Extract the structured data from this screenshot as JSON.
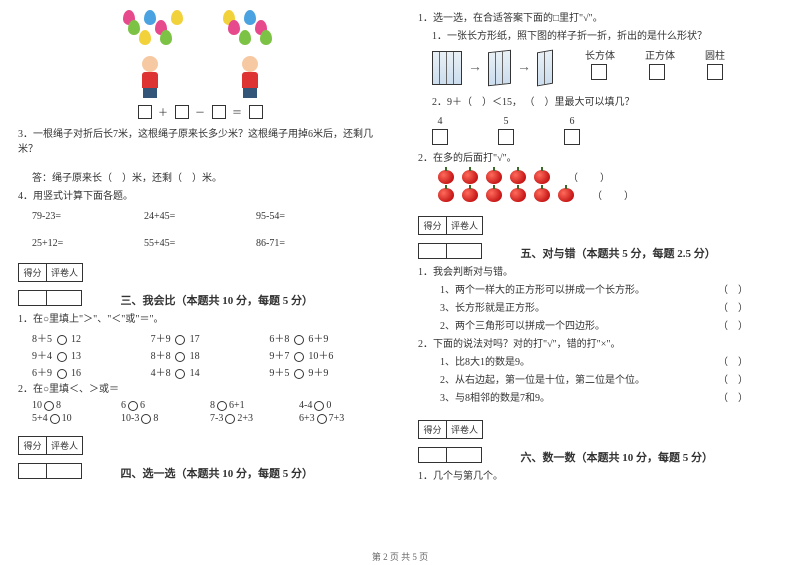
{
  "footer": "第 2 页 共 5 页",
  "left": {
    "balloon_colors_a": [
      "#e64a8c",
      "#7cc244",
      "#f2d23b",
      "#4aa3e0",
      "#e64a8c",
      "#7cc244",
      "#f2d23b"
    ],
    "balloon_colors_b": [
      "#f2d23b",
      "#e64a8c",
      "#7cc244",
      "#4aa3e0",
      "#e64a8c",
      "#7cc244"
    ],
    "eq_ops": [
      "＋",
      "－",
      "＝"
    ],
    "q3": "3．一根绳子对折后长7米，这根绳子原来长多少米？这根绳子用掉6米后，还剩几米？",
    "q3_ans": "答：绳子原来长（　）米，还剩（　）米。",
    "q4": "4．用竖式计算下面各题。",
    "calc": [
      "79-23=",
      "24+45=",
      "95-54=",
      "25+12=",
      "55+45=",
      "86-71="
    ],
    "sec3_title": "三、我会比（本题共 10 分，每题 5 分）",
    "comp1_label": "1．在○里填上\"＞\"、\"＜\"或\"＝\"。",
    "comp1": [
      "8＋5 ○ 12",
      "7＋9 ○ 17",
      "6＋8 ○ 6＋9",
      "9＋4 ○ 13",
      "8＋8 ○ 18",
      "9＋7 ○ 10＋6",
      "6＋9 ○ 16",
      "4＋8 ○ 14",
      "9＋5 ○ 9＋9"
    ],
    "comp2_label": "2．在○里填＜、＞或＝",
    "comp2": [
      "10○8",
      "6○6",
      "8○6+1",
      "4-4○0",
      "5+4○10",
      "10-3○8",
      "7-3○2+3",
      "6+3○7+3"
    ],
    "sec4_title": "四、选一选（本题共 10 分，每题 5 分）",
    "score_labels": [
      "得分",
      "评卷人"
    ]
  },
  "right": {
    "q1": "1．选一选，在合适答案下面的□里打\"√\"。",
    "q1_sub": "1．一张长方形纸，照下图的样子折一折，折出的是什么形状？",
    "shape_labels": [
      "长方体",
      "正方体",
      "圆柱"
    ],
    "fillmax_label_a": "2．9＋（　）＜15，",
    "fillmax_label_b": "（　）里最大可以填几？",
    "fillmax_nums": [
      "4",
      "5",
      "6"
    ],
    "q2": "2．在多的后面打\"√\"。",
    "apple_rows": [
      5,
      6
    ],
    "paren": "（　）",
    "sec5_title": "五、对与错（本题共 5 分，每题 2.5 分）",
    "tf1_label": "1．我会判断对与错。",
    "tf1": [
      "1、两个一样大的正方形可以拼成一个长方形。",
      "3、长方形就是正方形。",
      "2、两个三角形可以拼成一个四边形。"
    ],
    "tf2_label": "2．下面的说法对吗？对的打\"√\"，错的打\"×\"。",
    "tf2": [
      "1、比8大1的数是9。",
      "2、从右边起，第一位是十位，第二位是个位。",
      "3、与8相邻的数是7和9。"
    ],
    "sec6_title": "六、数一数（本题共 10 分，每题 5 分）",
    "q6_1": "1．几个与第几个。",
    "score_labels": [
      "得分",
      "评卷人"
    ]
  }
}
